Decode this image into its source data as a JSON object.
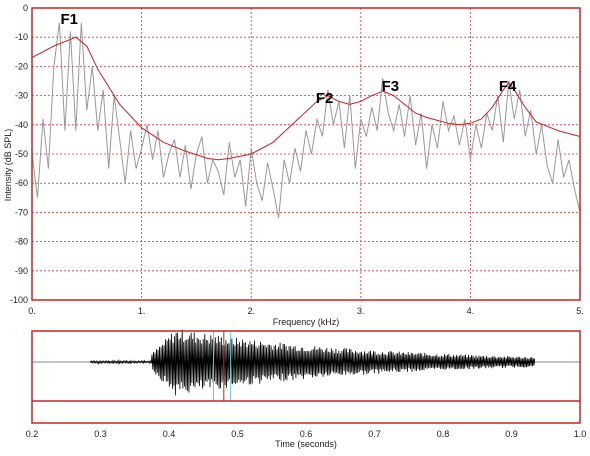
{
  "spectrum": {
    "xlabel": "Frequency (kHz)",
    "ylabel": "Intensity (dB SPL)",
    "formant_labels": [
      {
        "text": "F1",
        "x": 0.34,
        "y": 0
      },
      {
        "text": "F2",
        "x": 2.67,
        "y": -27
      },
      {
        "text": "F3",
        "x": 3.27,
        "y": -23
      },
      {
        "text": "F4",
        "x": 4.34,
        "y": -23
      }
    ],
    "colors": {
      "frame": "#cc2222",
      "grid": "#dd3333",
      "spectrum": "#999999",
      "envelope": "#cc2222"
    }
  },
  "waveform": {
    "xlabel": "Time (seconds)",
    "cursors": [
      0.465,
      0.48,
      0.49
    ],
    "cursor_colors": [
      "#66cccc",
      "#cc2222",
      "#66cccc"
    ]
  },
  "chart_data": [
    {
      "type": "line",
      "xlabel": "Frequency (kHz)",
      "ylabel": "Intensity (dB SPL)",
      "xlim": [
        0,
        5
      ],
      "ylim": [
        -100,
        0
      ],
      "xticks": [
        "0.",
        "1.",
        "2.",
        "3.",
        "4.",
        "5."
      ],
      "yticks": [
        "0",
        "-10",
        "-20",
        "-30",
        "-40",
        "-50",
        "-60",
        "-70",
        "-80",
        "-90",
        "-100"
      ],
      "grid": true,
      "series": [
        {
          "values_x": [
            0,
            0.05,
            0.1,
            0.15,
            0.2,
            0.25,
            0.3,
            0.35,
            0.4,
            0.45,
            0.5,
            0.55,
            0.6,
            0.65,
            0.7,
            0.75,
            0.8,
            0.85,
            0.9,
            0.95,
            1.0,
            1.05,
            1.1,
            1.15,
            1.2,
            1.25,
            1.3,
            1.35,
            1.4,
            1.45,
            1.5,
            1.55,
            1.6,
            1.65,
            1.7,
            1.75,
            1.8,
            1.85,
            1.9,
            1.95,
            2.0,
            2.05,
            2.1,
            2.15,
            2.2,
            2.25,
            2.3,
            2.35,
            2.4,
            2.45,
            2.5,
            2.55,
            2.6,
            2.65,
            2.7,
            2.75,
            2.8,
            2.85,
            2.9,
            2.95,
            3.0,
            3.05,
            3.1,
            3.15,
            3.2,
            3.25,
            3.3,
            3.35,
            3.4,
            3.45,
            3.5,
            3.55,
            3.6,
            3.65,
            3.7,
            3.75,
            3.8,
            3.85,
            3.9,
            3.95,
            4.0,
            4.05,
            4.1,
            4.15,
            4.2,
            4.25,
            4.3,
            4.35,
            4.4,
            4.45,
            4.5,
            4.55,
            4.6,
            4.65,
            4.7,
            4.75,
            4.8,
            4.85,
            4.9,
            4.95,
            5.0
          ],
          "values": [
            -50,
            -65,
            -38,
            -55,
            -20,
            -5,
            -42,
            -8,
            -42,
            -5,
            -35,
            -20,
            -42,
            -28,
            -55,
            -30,
            -45,
            -60,
            -42,
            -55,
            -48,
            -40,
            -52,
            -42,
            -58,
            -50,
            -45,
            -58,
            -47,
            -62,
            -50,
            -44,
            -60,
            -52,
            -56,
            -64,
            -46,
            -58,
            -52,
            -68,
            -48,
            -60,
            -66,
            -53,
            -62,
            -72,
            -52,
            -60,
            -48,
            -56,
            -42,
            -50,
            -38,
            -44,
            -28,
            -40,
            -32,
            -48,
            -30,
            -55,
            -38,
            -44,
            -34,
            -42,
            -24,
            -36,
            -42,
            -33,
            -44,
            -30,
            -47,
            -36,
            -55,
            -40,
            -48,
            -32,
            -42,
            -37,
            -47,
            -38,
            -52,
            -40,
            -48,
            -36,
            -42,
            -30,
            -46,
            -25,
            -38,
            -28,
            -44,
            -35,
            -50,
            -40,
            -54,
            -60,
            -45,
            -58,
            -52,
            -62,
            -70
          ]
        },
        {
          "values_x": [
            0,
            0.2,
            0.4,
            0.5,
            0.6,
            0.8,
            1.0,
            1.2,
            1.4,
            1.6,
            1.7,
            1.8,
            2.0,
            2.2,
            2.4,
            2.6,
            2.7,
            2.8,
            2.9,
            3.0,
            3.1,
            3.2,
            3.3,
            3.4,
            3.5,
            3.6,
            3.7,
            3.8,
            3.9,
            4.0,
            4.1,
            4.2,
            4.3,
            4.35,
            4.4,
            4.5,
            4.6,
            4.8,
            5.0
          ],
          "values": [
            -17,
            -13,
            -10,
            -13,
            -21,
            -33,
            -41,
            -46,
            -49,
            -51.5,
            -52,
            -51.5,
            -50,
            -46,
            -39,
            -32,
            -30,
            -32,
            -33,
            -32,
            -30,
            -28.5,
            -30,
            -33,
            -36,
            -37.5,
            -38.5,
            -39.5,
            -40,
            -39.5,
            -38,
            -34,
            -28,
            -25.5,
            -28,
            -34,
            -39,
            -42,
            -44
          ]
        }
      ]
    },
    {
      "type": "line",
      "xlabel": "Time (seconds)",
      "xlim": [
        0.2,
        1.0
      ],
      "xticks": [
        "0.2",
        "0.3",
        "0.4",
        "0.5",
        "0.6",
        "0.7",
        "0.8",
        "0.9",
        "1.0"
      ],
      "grid": false
    }
  ]
}
